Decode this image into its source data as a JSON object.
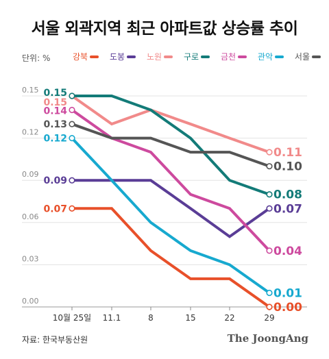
{
  "title": "서울 외곽지역 최근 아파트값 상승률 추이",
  "unit_label": "단위: %",
  "source": "자료: 한국부동산원",
  "brand": "The JoongAng",
  "chart_data": {
    "type": "line",
    "title": "서울 외곽지역 최근 아파트값 상승률 추이",
    "xlabel": "",
    "ylabel": "단위: %",
    "x": [
      "10월 25일",
      "11.1",
      "8",
      "15",
      "22",
      "29"
    ],
    "ylim": [
      0,
      0.15
    ],
    "yticks": [
      "0.00",
      "0.03",
      "0.06",
      "0.09",
      "0.12",
      "0.15"
    ],
    "grid": true,
    "legend": "top",
    "series": [
      {
        "name": "강북",
        "color": "#e8502a",
        "values": [
          0.07,
          0.07,
          0.04,
          0.02,
          0.02,
          0.0
        ],
        "start_label": "0.07",
        "end_label": "0.00"
      },
      {
        "name": "도봉",
        "color": "#5a3d96",
        "values": [
          0.09,
          0.09,
          0.09,
          0.07,
          0.05,
          0.07
        ],
        "start_label": "0.09",
        "end_label": "0.07"
      },
      {
        "name": "노원",
        "color": "#f18a8a",
        "values": [
          0.15,
          0.13,
          0.14,
          0.13,
          0.12,
          0.11
        ],
        "start_label": "0.15",
        "end_label": "0.11"
      },
      {
        "name": "구로",
        "color": "#137b78",
        "values": [
          0.15,
          0.15,
          0.14,
          0.12,
          0.09,
          0.08
        ],
        "start_label": "0.15",
        "end_label": "0.08"
      },
      {
        "name": "금천",
        "color": "#cd4a9e",
        "values": [
          0.14,
          0.12,
          0.11,
          0.08,
          0.07,
          0.04
        ],
        "start_label": "0.14",
        "end_label": "0.04"
      },
      {
        "name": "관악",
        "color": "#17a9cf",
        "values": [
          0.12,
          0.09,
          0.06,
          0.04,
          0.03,
          0.01
        ],
        "start_label": "0.12",
        "end_label": "0.01"
      },
      {
        "name": "서울",
        "color": "#555555",
        "values": [
          0.13,
          0.12,
          0.12,
          0.11,
          0.11,
          0.1
        ],
        "start_label": "0.13",
        "end_label": "0.10"
      }
    ]
  }
}
